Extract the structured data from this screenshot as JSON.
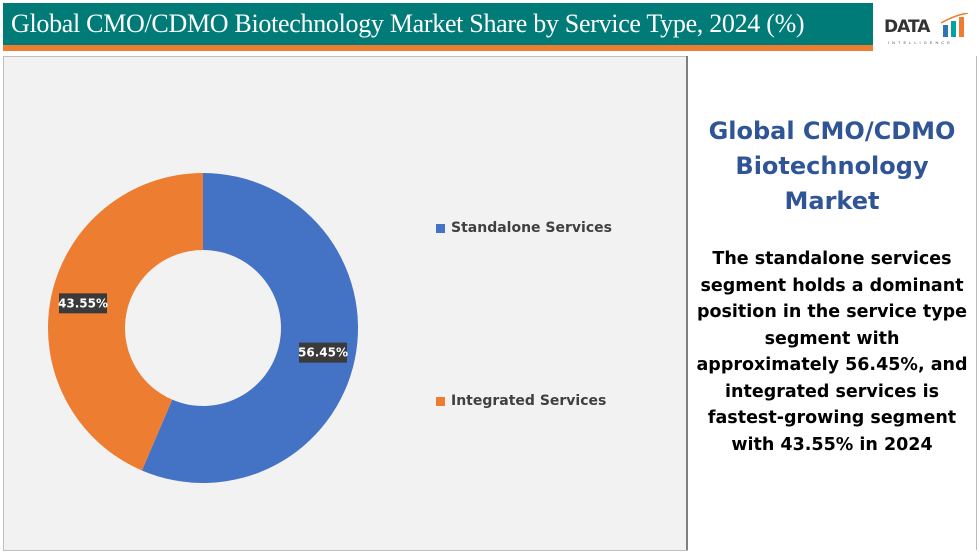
{
  "header": {
    "title": "Global CMO/CDMO Biotechnology Market Share by Service Type, 2024 (%)"
  },
  "logo": {
    "text": "DATA",
    "subtext": "INTELLIGENCE"
  },
  "chart_data": {
    "type": "pie",
    "variant": "donut",
    "categories": [
      "Standalone Services",
      "Integrated Services"
    ],
    "values": [
      56.45,
      43.55
    ],
    "data_labels": [
      "56.45%",
      "43.55%"
    ],
    "colors": [
      "#4472C4",
      "#ED7D31"
    ],
    "legend": "right",
    "start_angle": "top, clockwise"
  },
  "side_panel": {
    "title_lines": [
      "Global CMO/CDMO",
      "Biotechnology",
      "Market"
    ],
    "text_lines": [
      "The standalone services",
      "segment holds a dominant",
      "position in the service type",
      "segment with",
      "approximately 56.45%, and",
      "integrated services is",
      "fastest-growing segment",
      "with 43.55% in 2024"
    ]
  }
}
